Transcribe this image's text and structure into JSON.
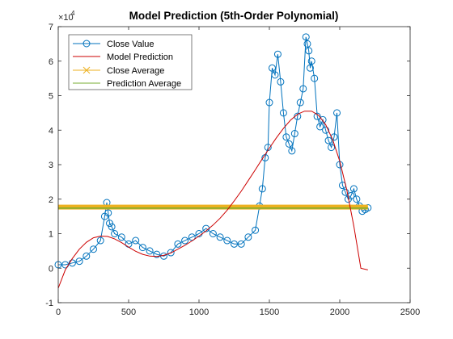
{
  "chart_data": {
    "type": "line",
    "title": "Model Prediction (5th-Order Polynomial)",
    "xlabel": "",
    "ylabel": "",
    "xlim": [
      0,
      2500
    ],
    "ylim": [
      -1,
      7
    ],
    "y_multiplier_label": "×10",
    "y_multiplier_exponent": "4",
    "x_ticks": [
      0,
      500,
      1000,
      1500,
      2000,
      2500
    ],
    "y_ticks": [
      -1,
      0,
      1,
      2,
      3,
      4,
      5,
      6,
      7
    ],
    "x_tick_labels": [
      "0",
      "500",
      "1000",
      "1500",
      "2000",
      "2500"
    ],
    "y_tick_labels": [
      "-1",
      "0",
      "1",
      "2",
      "3",
      "4",
      "5",
      "6",
      "7"
    ],
    "grid": false,
    "legend_position": "top-left",
    "series": [
      {
        "name": "Close Value",
        "color": "#0072BD",
        "marker": "circle",
        "x": [
          0,
          50,
          100,
          150,
          200,
          250,
          300,
          330,
          345,
          355,
          365,
          380,
          400,
          450,
          500,
          550,
          600,
          650,
          700,
          750,
          800,
          850,
          900,
          950,
          1000,
          1050,
          1100,
          1150,
          1200,
          1250,
          1300,
          1350,
          1400,
          1430,
          1450,
          1470,
          1490,
          1500,
          1520,
          1540,
          1560,
          1580,
          1600,
          1620,
          1640,
          1660,
          1680,
          1700,
          1720,
          1740,
          1760,
          1770,
          1780,
          1790,
          1800,
          1820,
          1840,
          1860,
          1880,
          1900,
          1920,
          1940,
          1960,
          1980,
          2000,
          2020,
          2040,
          2060,
          2080,
          2100,
          2120,
          2140,
          2160,
          2180,
          2200
        ],
        "values": [
          0.1,
          0.1,
          0.15,
          0.2,
          0.35,
          0.55,
          0.8,
          1.5,
          1.9,
          1.6,
          1.3,
          1.2,
          1.0,
          0.9,
          0.7,
          0.8,
          0.6,
          0.5,
          0.4,
          0.35,
          0.45,
          0.7,
          0.8,
          0.9,
          1.0,
          1.15,
          1.0,
          0.9,
          0.8,
          0.7,
          0.7,
          0.9,
          1.1,
          1.8,
          2.3,
          3.2,
          3.5,
          4.8,
          5.8,
          5.6,
          6.2,
          5.4,
          4.5,
          3.8,
          3.6,
          3.4,
          3.9,
          4.4,
          4.8,
          5.2,
          6.7,
          6.5,
          6.3,
          5.8,
          6.0,
          5.5,
          4.4,
          4.1,
          4.3,
          4.0,
          3.7,
          3.5,
          3.8,
          4.5,
          3.0,
          2.4,
          2.2,
          2.0,
          2.1,
          2.3,
          2.0,
          1.8,
          1.65,
          1.7,
          1.75
        ]
      },
      {
        "name": "Model Prediction",
        "color": "#D95319",
        "curve_color": "#CC0000",
        "x": [
          0,
          50,
          100,
          150,
          200,
          250,
          300,
          350,
          400,
          450,
          500,
          550,
          600,
          650,
          700,
          750,
          800,
          850,
          900,
          950,
          1000,
          1050,
          1100,
          1150,
          1200,
          1250,
          1300,
          1350,
          1400,
          1450,
          1500,
          1550,
          1600,
          1650,
          1700,
          1750,
          1800,
          1850,
          1900,
          1950,
          2000,
          2050,
          2100,
          2150,
          2200
        ],
        "values": [
          -0.58,
          -0.05,
          0.28,
          0.55,
          0.75,
          0.88,
          0.93,
          0.92,
          0.85,
          0.74,
          0.61,
          0.49,
          0.4,
          0.35,
          0.34,
          0.37,
          0.44,
          0.55,
          0.66,
          0.79,
          0.93,
          1.08,
          1.25,
          1.45,
          1.68,
          1.95,
          2.23,
          2.54,
          2.85,
          3.17,
          3.48,
          3.78,
          4.05,
          4.29,
          4.46,
          4.55,
          4.55,
          4.43,
          4.16,
          3.72,
          3.1,
          2.27,
          1.22,
          0.0,
          -0.05
        ]
      },
      {
        "name": "Close Average",
        "color": "#EDB120",
        "marker": "x",
        "constant": 1.77
      },
      {
        "name": "Prediction Average",
        "color": "#77AC30",
        "constant": 1.74
      }
    ]
  }
}
